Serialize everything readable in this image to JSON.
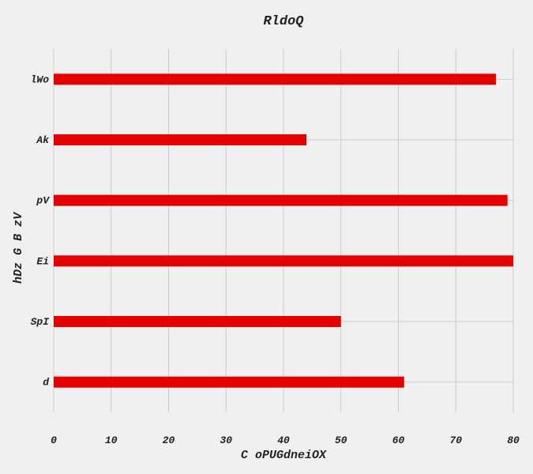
{
  "chart_data": {
    "type": "bar",
    "orientation": "horizontal",
    "title": "RldoQ",
    "xlabel": "C oPUGdneiOX",
    "ylabel": "hDz G B zV",
    "categories": [
      "d",
      "SpI",
      "Ei",
      "pV",
      "Ak",
      "lWo"
    ],
    "values": [
      61,
      50,
      80,
      79,
      44,
      77
    ],
    "xlim": [
      0,
      80
    ],
    "xticks": [
      "0",
      "10",
      "20",
      "30",
      "40",
      "50",
      "60",
      "70",
      "80"
    ],
    "grid": true,
    "legend": "none",
    "bar_color": "#e50000",
    "background_color": "#f0f0f0",
    "grid_color": "#cbcbcb"
  }
}
